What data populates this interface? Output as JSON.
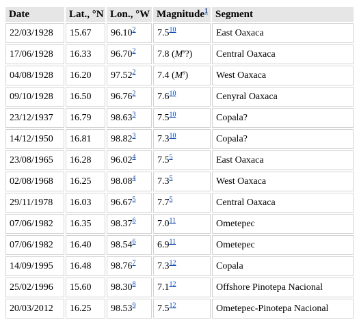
{
  "headers": {
    "date": "Date",
    "lat": "Lat., °N",
    "lon": "Lon., °W",
    "magnitude": "Magnitude",
    "magnitude_ref": "1",
    "segment": "Segment"
  },
  "rows": [
    {
      "date": "22/03/1928",
      "lat": "15.67",
      "lon": "96.10",
      "lon_ref": "2",
      "mag": "7.5",
      "mag_ref": "10",
      "mag_note": "",
      "segment": "East Oaxaca"
    },
    {
      "date": "17/06/1928",
      "lat": "16.33",
      "lon": "96.70",
      "lon_ref": "2",
      "mag": "7.8",
      "mag_ref": "",
      "mag_note": "(Ms?)",
      "segment": "Central Oaxaca"
    },
    {
      "date": "04/08/1928",
      "lat": "16.20",
      "lon": "97.52",
      "lon_ref": "2",
      "mag": "7.4",
      "mag_ref": "",
      "mag_note": "(Ms)",
      "segment": "West Oaxaca"
    },
    {
      "date": "09/10/1928",
      "lat": "16.50",
      "lon": "96.76",
      "lon_ref": "2",
      "mag": "7.6",
      "mag_ref": "10",
      "mag_note": "",
      "segment": "Cenyral Oaxaca"
    },
    {
      "date": "23/12/1937",
      "lat": "16.79",
      "lon": "98.63",
      "lon_ref": "3",
      "mag": "7.5",
      "mag_ref": "10",
      "mag_note": "",
      "segment": "Copala?"
    },
    {
      "date": "14/12/1950",
      "lat": "16.81",
      "lon": "98.82",
      "lon_ref": "3",
      "mag": "7.3",
      "mag_ref": "10",
      "mag_note": "",
      "segment": "Copala?"
    },
    {
      "date": "23/08/1965",
      "lat": "16.28",
      "lon": "96.02",
      "lon_ref": "4",
      "mag": "7.5",
      "mag_ref": "5",
      "mag_note": "",
      "segment": "East Oaxaca"
    },
    {
      "date": "02/08/1968",
      "lat": "16.25",
      "lon": "98.08",
      "lon_ref": "4",
      "mag": "7.3",
      "mag_ref": "5",
      "mag_note": "",
      "segment": "West Oaxaca"
    },
    {
      "date": "29/11/1978",
      "lat": "16.03",
      "lon": "96.67",
      "lon_ref": "5",
      "mag": "7.7",
      "mag_ref": "5",
      "mag_note": "",
      "segment": "Central Oaxaca"
    },
    {
      "date": "07/06/1982",
      "lat": "16.35",
      "lon": "98.37",
      "lon_ref": "6",
      "mag": "7.0",
      "mag_ref": "11",
      "mag_note": "",
      "segment": "Ometepec"
    },
    {
      "date": "07/06/1982",
      "lat": "16.40",
      "lon": "98.54",
      "lon_ref": "6",
      "mag": "6.9",
      "mag_ref": "11",
      "mag_note": "",
      "segment": "Ometepec"
    },
    {
      "date": "14/09/1995",
      "lat": "16.48",
      "lon": "98.76",
      "lon_ref": "7",
      "mag": "7.3",
      "mag_ref": "12",
      "mag_note": "",
      "segment": "Copala"
    },
    {
      "date": "25/02/1996",
      "lat": "15.60",
      "lon": "98.30",
      "lon_ref": "8",
      "mag": "7.1",
      "mag_ref": "12",
      "mag_note": "",
      "segment": "Offshore Pinotepa Nacional"
    },
    {
      "date": "20/03/2012",
      "lat": "16.25",
      "lon": "98.53",
      "lon_ref": "9",
      "mag": "7.5",
      "mag_ref": "12",
      "mag_note": "",
      "segment": "Ometepec-Pinotepa Nacional"
    }
  ]
}
